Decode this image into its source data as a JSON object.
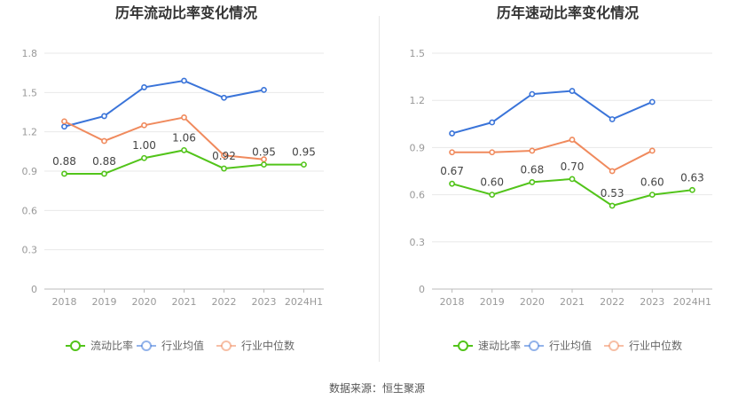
{
  "source": "数据来源：恒生聚源",
  "colors": {
    "green": "#52c41a",
    "blue": "#3a74d9",
    "orange": "#f08a5d",
    "grid": "#e8e8e8",
    "axis": "#999999",
    "label": "#666666",
    "title": "#333333"
  },
  "chart_data": [
    {
      "type": "line",
      "title": "历年流动比率变化情况",
      "categories": [
        "2018",
        "2019",
        "2020",
        "2021",
        "2022",
        "2023",
        "2024H1"
      ],
      "ylim": [
        0,
        1.8
      ],
      "yticks": [
        "0",
        "0.3",
        "0.6",
        "0.9",
        "1.2",
        "1.5",
        "1.8"
      ],
      "grid": true,
      "legend_position": "bottom",
      "series": [
        {
          "name": "流动比率",
          "color": "#52c41a",
          "labeled": true,
          "values": [
            0.88,
            0.88,
            1.0,
            1.06,
            0.92,
            0.95,
            0.95
          ],
          "labels": [
            "0.88",
            "0.88",
            "1.00",
            "1.06",
            "0.92",
            "0.95",
            "0.95"
          ]
        },
        {
          "name": "行业均值",
          "color": "#3a74d9",
          "labeled": false,
          "values": [
            1.24,
            1.32,
            1.54,
            1.59,
            1.46,
            1.52,
            null
          ]
        },
        {
          "name": "行业中位数",
          "color": "#f08a5d",
          "labeled": false,
          "values": [
            1.28,
            1.13,
            1.25,
            1.31,
            1.02,
            0.99,
            null
          ]
        }
      ]
    },
    {
      "type": "line",
      "title": "历年速动比率变化情况",
      "categories": [
        "2018",
        "2019",
        "2020",
        "2021",
        "2022",
        "2023",
        "2024H1"
      ],
      "ylim": [
        0,
        1.5
      ],
      "yticks": [
        "0",
        "0.3",
        "0.6",
        "0.9",
        "1.2",
        "1.5"
      ],
      "grid": true,
      "legend_position": "bottom",
      "series": [
        {
          "name": "速动比率",
          "color": "#52c41a",
          "labeled": true,
          "values": [
            0.67,
            0.6,
            0.68,
            0.7,
            0.53,
            0.6,
            0.63
          ],
          "labels": [
            "0.67",
            "0.60",
            "0.68",
            "0.70",
            "0.53",
            "0.60",
            "0.63"
          ]
        },
        {
          "name": "行业均值",
          "color": "#3a74d9",
          "labeled": false,
          "values": [
            0.99,
            1.06,
            1.24,
            1.26,
            1.08,
            1.19,
            null
          ]
        },
        {
          "name": "行业中位数",
          "color": "#f08a5d",
          "labeled": false,
          "values": [
            0.87,
            0.87,
            0.88,
            0.95,
            0.75,
            0.88,
            null
          ]
        }
      ]
    }
  ]
}
